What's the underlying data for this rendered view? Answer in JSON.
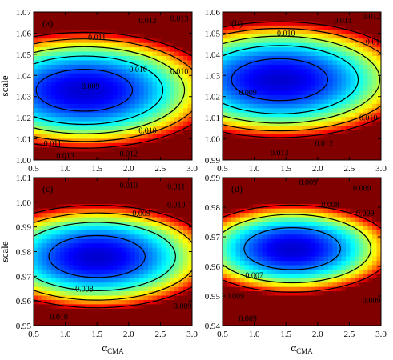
{
  "chart_data": [
    {
      "type": "heatmap",
      "panel_label": "(a)",
      "ylabel": "scale",
      "xlabel": "",
      "xlim": [
        0.5,
        3.0
      ],
      "ylim": [
        1.0,
        1.07
      ],
      "xticks": [
        "0.5",
        "1.0",
        "1.5",
        "2.0",
        "2.5",
        "3.0"
      ],
      "yticks": [
        "1.00",
        "1.01",
        "1.02",
        "1.03",
        "1.04",
        "1.05",
        "1.06",
        "1.07"
      ],
      "minimum": {
        "x": 1.3,
        "y": 1.033
      },
      "contours": [
        {
          "level": 0.009,
          "label": "0.009",
          "label_at": [
            1.4,
            1.035
          ]
        },
        {
          "level": 0.01,
          "label": "0.010",
          "label_at": [
            2.15,
            1.043
          ]
        },
        {
          "level": 0.01,
          "label": "0.010",
          "label_at": [
            2.8,
            1.042
          ]
        },
        {
          "level": 0.01,
          "label": "0.010",
          "label_at": [
            2.3,
            1.014
          ]
        },
        {
          "level": 0.011,
          "label": "0.011",
          "label_at": [
            1.5,
            1.058
          ]
        },
        {
          "level": 0.011,
          "label": "0.011",
          "label_at": [
            0.8,
            1.008
          ]
        },
        {
          "level": 0.012,
          "label": "0.012",
          "label_at": [
            2.3,
            1.066
          ]
        },
        {
          "level": 0.012,
          "label": "0.012",
          "label_at": [
            2.0,
            1.003
          ]
        },
        {
          "level": 0.013,
          "label": "0.013",
          "label_at": [
            2.8,
            1.067
          ]
        },
        {
          "level": 0.013,
          "label": "0.013",
          "label_at": [
            1.0,
            1.002
          ]
        }
      ]
    },
    {
      "type": "heatmap",
      "panel_label": "(b)",
      "ylabel": "",
      "xlabel": "",
      "xlim": [
        0.5,
        3.0
      ],
      "ylim": [
        0.99,
        1.06
      ],
      "xticks": [
        "0.5",
        "1.0",
        "1.5",
        "2.0",
        "2.5",
        "3.0"
      ],
      "yticks": [
        "0.99",
        "1.00",
        "1.01",
        "1.02",
        "1.03",
        "1.04",
        "1.05",
        "1.06"
      ],
      "minimum": {
        "x": 1.4,
        "y": 1.028
      },
      "contours": [
        {
          "level": 0.009,
          "label": "0.009",
          "label_at": [
            0.9,
            1.022
          ]
        },
        {
          "level": 0.01,
          "label": "0.010",
          "label_at": [
            1.5,
            1.05
          ]
        },
        {
          "level": 0.01,
          "label": "0.010",
          "label_at": [
            2.8,
            1.01
          ]
        },
        {
          "level": 0.01,
          "label": "0.010",
          "label_at": [
            2.9,
            1.046
          ]
        },
        {
          "level": 0.011,
          "label": "0.011",
          "label_at": [
            2.4,
            1.056
          ]
        },
        {
          "level": 0.012,
          "label": "0.012",
          "label_at": [
            2.85,
            1.058
          ]
        },
        {
          "level": 0.012,
          "label": "0.012",
          "label_at": [
            2.1,
            0.998
          ]
        },
        {
          "level": 0.013,
          "label": "0.013",
          "label_at": [
            1.4,
            0.9935
          ]
        }
      ]
    },
    {
      "type": "heatmap",
      "panel_label": "(c)",
      "ylabel": "scale",
      "xlabel": "αCMA",
      "xlim": [
        0.5,
        3.0
      ],
      "ylim": [
        0.95,
        1.01
      ],
      "xticks": [
        "0.5",
        "1.0",
        "1.5",
        "2.0",
        "2.5",
        "3.0"
      ],
      "yticks": [
        "0.95",
        "0.96",
        "0.97",
        "0.98",
        "0.99",
        "1.00",
        "1.01"
      ],
      "minimum": {
        "x": 1.5,
        "y": 0.978
      },
      "contours": [
        {
          "level": 0.008,
          "label": "0.008",
          "label_at": [
            1.3,
            0.965
          ]
        },
        {
          "level": 0.009,
          "label": "0.009",
          "label_at": [
            2.2,
            0.9955
          ]
        },
        {
          "level": 0.009,
          "label": "0.009",
          "label_at": [
            2.85,
            0.958
          ]
        },
        {
          "level": 0.01,
          "label": "0.010",
          "label_at": [
            2.0,
            1.007
          ]
        },
        {
          "level": 0.01,
          "label": "0.010",
          "label_at": [
            2.75,
            0.999
          ]
        },
        {
          "level": 0.01,
          "label": "0.010",
          "label_at": [
            0.9,
            0.9535
          ]
        },
        {
          "level": 0.011,
          "label": "0.011",
          "label_at": [
            2.75,
            1.0065
          ]
        }
      ]
    },
    {
      "type": "heatmap",
      "panel_label": "(d)",
      "ylabel": "",
      "xlabel": "αCMA",
      "xlim": [
        0.5,
        3.0
      ],
      "ylim": [
        0.94,
        0.99
      ],
      "xticks": [
        "0.5",
        "1.0",
        "1.5",
        "2.0",
        "2.5",
        "3.0"
      ],
      "yticks": [
        "0.94",
        "0.95",
        "0.96",
        "0.97",
        "0.98",
        "0.99"
      ],
      "minimum": {
        "x": 1.6,
        "y": 0.966
      },
      "contours": [
        {
          "level": 0.007,
          "label": "0.007",
          "label_at": [
            1.0,
            0.957
          ]
        },
        {
          "level": 0.008,
          "label": "0.008",
          "label_at": [
            2.2,
            0.981
          ]
        },
        {
          "level": 0.009,
          "label": "0.009",
          "label_at": [
            1.85,
            0.9885
          ]
        },
        {
          "level": 0.009,
          "label": "0.009",
          "label_at": [
            2.7,
            0.9865
          ]
        },
        {
          "level": 0.009,
          "label": "0.009",
          "label_at": [
            2.75,
            0.978
          ]
        },
        {
          "level": 0.009,
          "label": "0.009",
          "label_at": [
            0.7,
            0.95
          ]
        },
        {
          "level": 0.009,
          "label": "0.009",
          "label_at": [
            2.85,
            0.9485
          ]
        },
        {
          "level": 0.009,
          "label": "0.009",
          "label_at": [
            0.9,
            0.9425
          ]
        }
      ]
    }
  ]
}
